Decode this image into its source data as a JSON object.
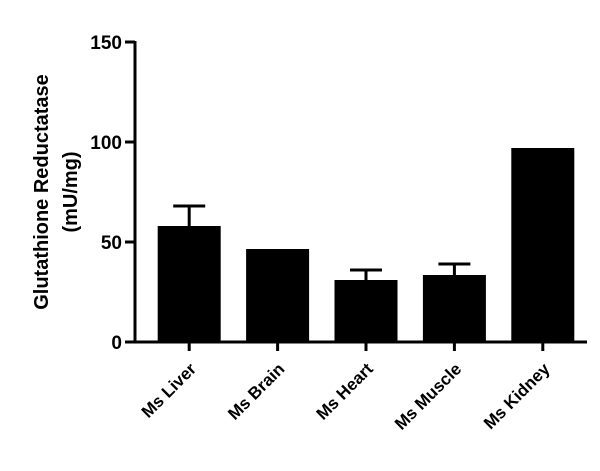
{
  "chart_data": {
    "type": "bar",
    "title": "",
    "xlabel": "",
    "ylabel": "Glutathione Reductatase",
    "ylabel_unit": "(mU/mg)",
    "categories": [
      "Ms Liver",
      "Ms Brain",
      "Ms Heart",
      "Ms Muscle",
      "Ms Kidney"
    ],
    "values": [
      58,
      46.5,
      31,
      33.5,
      97
    ],
    "error_upper": [
      10,
      0,
      5,
      5.5,
      0
    ],
    "ylim": [
      0,
      150
    ],
    "yticks": [
      0,
      50,
      100,
      150
    ],
    "grid": false,
    "bar_color": "#000000"
  }
}
